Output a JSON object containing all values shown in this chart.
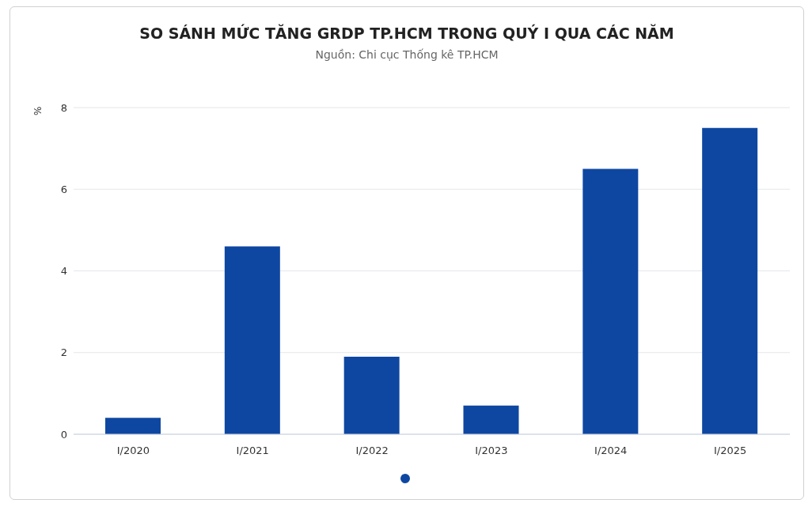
{
  "chart_data": {
    "type": "bar",
    "title": "SO SÁNH MỨC TĂNG GRDP TP.HCM TRONG QUÝ I QUA CÁC NĂM",
    "subtitle": "Nguồn: Chi cục Thống kê TP.HCM",
    "ylabel": "%",
    "categories": [
      "I/2020",
      "I/2021",
      "I/2022",
      "I/2023",
      "I/2024",
      "I/2025"
    ],
    "values": [
      0.4,
      4.6,
      1.9,
      0.7,
      6.5,
      7.5
    ],
    "color": "#0e47a1",
    "ylim": [
      0,
      8
    ],
    "yticks": [
      0,
      2,
      4,
      6,
      8
    ],
    "grid": "y"
  }
}
